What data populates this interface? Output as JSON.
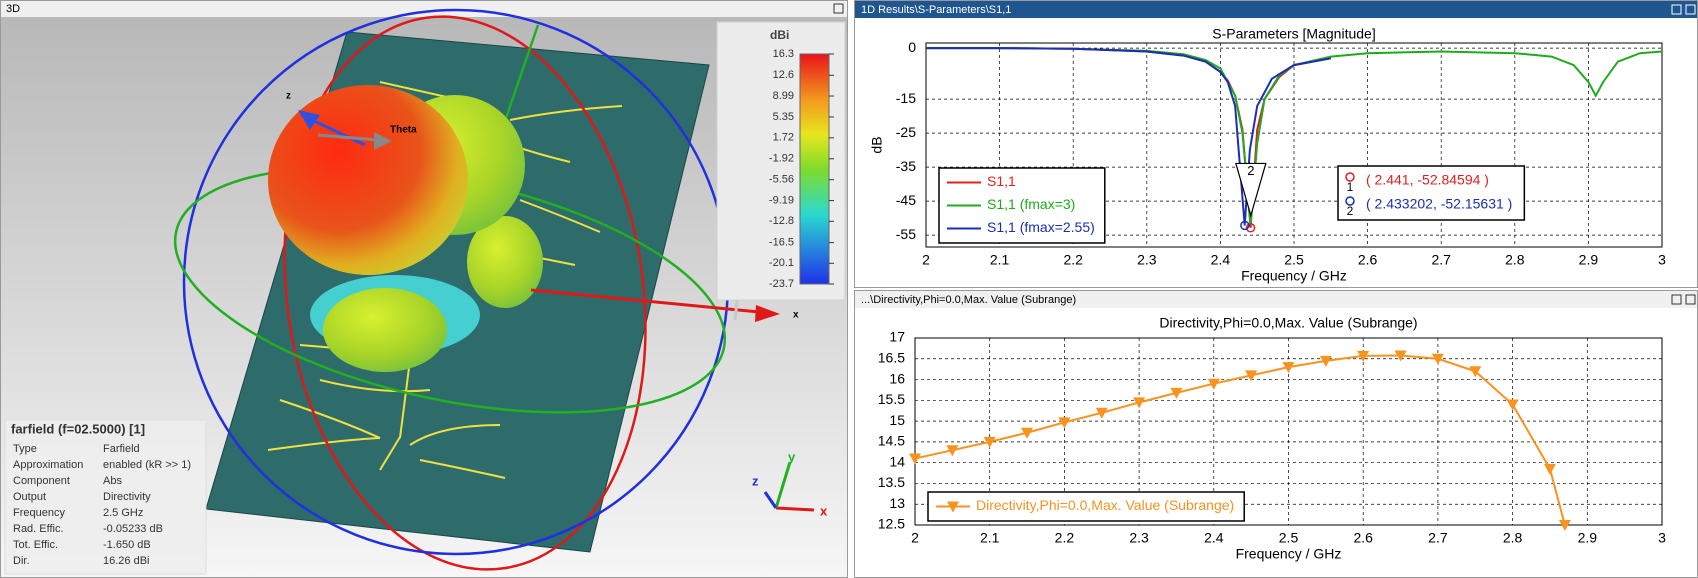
{
  "panels": {
    "left_title": "3D",
    "top_right_title": "1D Results\\S-Parameters\\S1,1",
    "bottom_right_title": "...\\Directivity,Phi=0.0,Max. Value (Subrange)"
  },
  "scene_labels": {
    "z": "z",
    "theta": "Theta",
    "x": "x",
    "triad_x": "x",
    "triad_y": "y",
    "triad_z": "z"
  },
  "colorbar": {
    "label": "dBi",
    "lim": [
      -23.7,
      16.3
    ],
    "ticks": [
      16.3,
      12.6,
      8.99,
      5.35,
      1.72,
      -1.92,
      -5.56,
      -9.19,
      -12.8,
      -16.5,
      -20.1,
      -23.7
    ]
  },
  "info_box": {
    "title": "farfield (f=02.5000) [1]",
    "rows": [
      [
        "Type",
        "Farfield"
      ],
      [
        "Approximation",
        "enabled (kR >> 1)"
      ],
      [
        "Component",
        "Abs"
      ],
      [
        "Output",
        "Directivity"
      ],
      [
        "Frequency",
        "2.5 GHz"
      ],
      [
        "Rad. Effic.",
        "-0.05233 dB"
      ],
      [
        "Tot. Effic.",
        "-1.650 dB"
      ],
      [
        "Dir.",
        "16.26 dBi"
      ]
    ]
  },
  "chart_data": [
    {
      "type": "line",
      "title": "S-Parameters [Magnitude]",
      "x_label": "Frequency / GHz",
      "y_label": "dB",
      "xlim": [
        2,
        3
      ],
      "ylim": [
        -58.5,
        1.5
      ],
      "xticks": [
        2,
        2.1,
        2.2,
        2.3,
        2.4,
        2.5,
        2.6,
        2.7,
        2.8,
        2.9,
        3
      ],
      "yticks": [
        0,
        -15,
        -25,
        -35,
        -45,
        -55
      ],
      "grid": true,
      "legend": "lower left",
      "series": [
        {
          "name": "S1,1",
          "color": "#e02020",
          "x": [
            2,
            2.1,
            2.2,
            2.3,
            2.35,
            2.38,
            2.4,
            2.41,
            2.42,
            2.43,
            2.441,
            2.45,
            2.46,
            2.48,
            2.5,
            2.55
          ],
          "values": [
            0,
            0,
            -0.2,
            -1,
            -2.2,
            -4,
            -7,
            -9.5,
            -14,
            -24,
            -52.85,
            -24,
            -15,
            -8.5,
            -5,
            -3
          ]
        },
        {
          "name": "S1,1 (fmax=3)",
          "color": "#1faa1f",
          "x": [
            2,
            2.1,
            2.2,
            2.3,
            2.35,
            2.38,
            2.4,
            2.42,
            2.43,
            2.441,
            2.45,
            2.46,
            2.48,
            2.5,
            2.55,
            2.6,
            2.7,
            2.8,
            2.85,
            2.88,
            2.9,
            2.91,
            2.92,
            2.94,
            2.97,
            3
          ],
          "values": [
            0,
            0,
            -0.2,
            -0.8,
            -1.8,
            -3.5,
            -6,
            -14,
            -25,
            -52,
            -28,
            -15,
            -8,
            -5,
            -2.5,
            -1.5,
            -1,
            -1.5,
            -2.5,
            -5,
            -10,
            -14,
            -10,
            -4,
            -1.5,
            -1
          ]
        },
        {
          "name": "S1,1 (fmax=2.55)",
          "color": "#1a2fb5",
          "x": [
            2,
            2.1,
            2.2,
            2.3,
            2.35,
            2.38,
            2.4,
            2.41,
            2.42,
            2.433,
            2.44,
            2.45,
            2.47,
            2.5,
            2.55
          ],
          "values": [
            0,
            0,
            -0.2,
            -1,
            -2.2,
            -4,
            -7,
            -10,
            -17,
            -52.16,
            -30,
            -17,
            -9,
            -5,
            -3
          ]
        }
      ],
      "markers": [
        {
          "label": "1",
          "x": 2.441,
          "y": -52.84594,
          "text": "( 2.441, -52.84594 )",
          "color": "#e02020"
        },
        {
          "label": "2",
          "x": 2.433202,
          "y": -52.15631,
          "text": "( 2.433202, -52.15631 )",
          "color": "#1a2fb5"
        }
      ]
    },
    {
      "type": "line",
      "title": "Directivity,Phi=0.0,Max. Value (Subrange)",
      "x_label": "Frequency / GHz",
      "xlim": [
        2,
        3
      ],
      "ylim": [
        12.5,
        17
      ],
      "xticks": [
        2,
        2.1,
        2.2,
        2.3,
        2.4,
        2.5,
        2.6,
        2.7,
        2.8,
        2.9,
        3
      ],
      "yticks": [
        12.5,
        13,
        13.5,
        14,
        14.5,
        15,
        15.5,
        16,
        16.5,
        17
      ],
      "grid": true,
      "legend": "lower left",
      "series": [
        {
          "name": "Directivity,Phi=0.0,Max. Value (Subrange)",
          "color": "#f7931e",
          "marker": "triangle-down",
          "x": [
            2,
            2.05,
            2.1,
            2.15,
            2.2,
            2.25,
            2.3,
            2.35,
            2.4,
            2.45,
            2.5,
            2.55,
            2.6,
            2.65,
            2.7,
            2.75,
            2.8,
            2.85,
            2.87
          ],
          "values": [
            14.1,
            14.3,
            14.5,
            14.72,
            14.97,
            15.2,
            15.45,
            15.68,
            15.9,
            16.1,
            16.3,
            16.45,
            16.57,
            16.58,
            16.5,
            16.2,
            15.4,
            13.85,
            12.5
          ]
        }
      ]
    }
  ]
}
